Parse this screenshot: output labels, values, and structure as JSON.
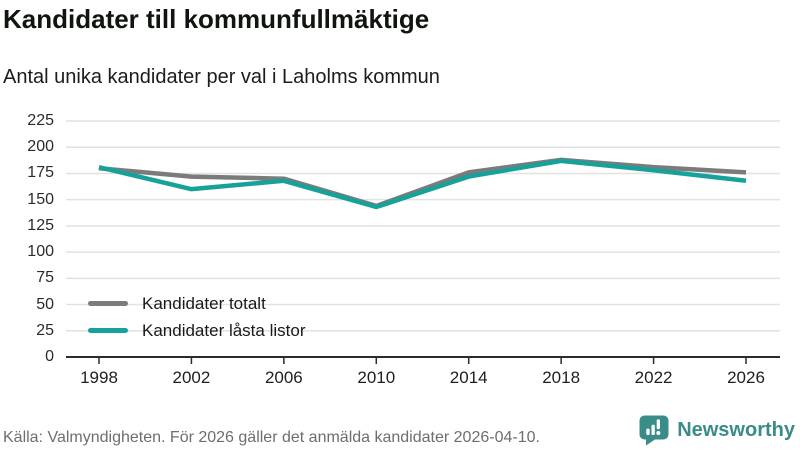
{
  "header": {
    "title": "Kandidater till kommunfullmäktige",
    "subtitle": "Antal unika kandidater per val i Laholms kommun"
  },
  "chart_data": {
    "type": "line",
    "x": [
      1998,
      2002,
      2006,
      2010,
      2014,
      2018,
      2022,
      2026
    ],
    "series": [
      {
        "name": "Kandidater totalt",
        "color": "#7b7b7b",
        "values": [
          180,
          172,
          170,
          144,
          176,
          188,
          181,
          176
        ]
      },
      {
        "name": "Kandidater låsta listor",
        "color": "#16a29a",
        "values": [
          181,
          160,
          168,
          143,
          172,
          187,
          178,
          168
        ]
      }
    ],
    "ylim": [
      0,
      225
    ],
    "ytick_step": 25,
    "yticks": [
      0,
      25,
      50,
      75,
      100,
      125,
      150,
      175,
      200,
      225
    ],
    "grid": true,
    "legend_position": "inside-bottom-left",
    "axis_color": "#2b2b2b",
    "grid_color": "#e2e2e2"
  },
  "footer": {
    "source": "Källa: Valmyndigheten. För 2026 gäller det anmälda kandidater 2026-04-10.",
    "brand": "Newsworthy",
    "brand_color": "#3a8c89"
  }
}
